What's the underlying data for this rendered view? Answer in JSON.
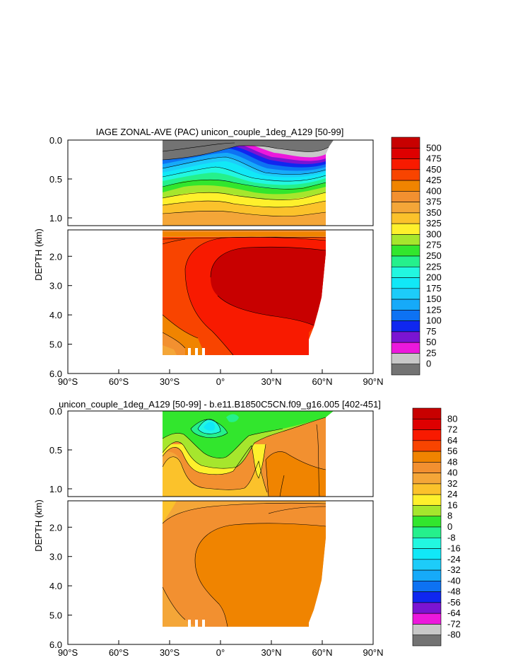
{
  "chart_data": [
    {
      "type": "heatmap",
      "title": "IAGE ZONAL-AVE (PAC) unicon_couple_1deg_A129 [50-99]",
      "ylabel": "DEPTH (km)",
      "x_tick_labels": [
        "90°S",
        "60°S",
        "30°S",
        "0°",
        "30°N",
        "60°N",
        "90°N"
      ],
      "x_ticks": [
        -90,
        -60,
        -30,
        0,
        30,
        60,
        90
      ],
      "ylim": [
        6.0,
        0.0
      ],
      "y_tick_labels_upper": [
        "0.0",
        "0.5",
        "1.0"
      ],
      "y_ticks_upper": [
        0.0,
        0.5,
        1.0
      ],
      "y_tick_labels_lower": [
        "2.0",
        "3.0",
        "4.0",
        "5.0",
        "6.0"
      ],
      "y_ticks_lower": [
        2.0,
        3.0,
        4.0,
        5.0,
        6.0
      ],
      "levels": [
        "500",
        "475",
        "450",
        "425",
        "400",
        "375",
        "350",
        "325",
        "300",
        "275",
        "250",
        "225",
        "200",
        "175",
        "150",
        "125",
        "100",
        "75",
        "50",
        "25",
        "0"
      ],
      "colors": [
        "#c80000",
        "#de0000",
        "#f81a00",
        "#f84400",
        "#f08400",
        "#f29030",
        "#f4a638",
        "#fbc22b",
        "#fef02c",
        "#a6e62d",
        "#32e62d",
        "#25f08c",
        "#22f7e0",
        "#11e8f7",
        "#1dccf9",
        "#16aaf9",
        "#0d72f3",
        "#0f27f0",
        "#7b14d2",
        "#ec18dc",
        "#c8c8c8",
        "#737373"
      ]
    },
    {
      "type": "heatmap",
      "title": "unicon_couple_1deg_A129 [50-99] - b.e11.B1850C5CN.f09_g16.005 [402-451]",
      "ylabel": "DEPTH (km)",
      "x_tick_labels": [
        "90°S",
        "60°S",
        "30°S",
        "0°",
        "30°N",
        "60°N",
        "90°N"
      ],
      "x_ticks": [
        -90,
        -60,
        -30,
        0,
        30,
        60,
        90
      ],
      "ylim": [
        6.0,
        0.0
      ],
      "y_tick_labels_upper": [
        "0.0",
        "0.5",
        "1.0"
      ],
      "y_ticks_upper": [
        0.0,
        0.5,
        1.0
      ],
      "y_tick_labels_lower": [
        "2.0",
        "3.0",
        "4.0",
        "5.0",
        "6.0"
      ],
      "y_ticks_lower": [
        2.0,
        3.0,
        4.0,
        5.0,
        6.0
      ],
      "levels": [
        "80",
        "72",
        "64",
        "56",
        "48",
        "40",
        "32",
        "24",
        "16",
        "8",
        "0",
        "-8",
        "-16",
        "-24",
        "-32",
        "-40",
        "-48",
        "-56",
        "-64",
        "-72",
        "-80"
      ],
      "colors": [
        "#c80000",
        "#de0000",
        "#f81a00",
        "#f84400",
        "#f08400",
        "#f29030",
        "#f4a638",
        "#fbc22b",
        "#fef02c",
        "#a6e62d",
        "#32e62d",
        "#25f08c",
        "#22f7e0",
        "#11e8f7",
        "#1dccf9",
        "#16aaf9",
        "#0d72f3",
        "#0f27f0",
        "#7b14d2",
        "#ec18dc",
        "#c8c8c8",
        "#737373"
      ]
    }
  ]
}
